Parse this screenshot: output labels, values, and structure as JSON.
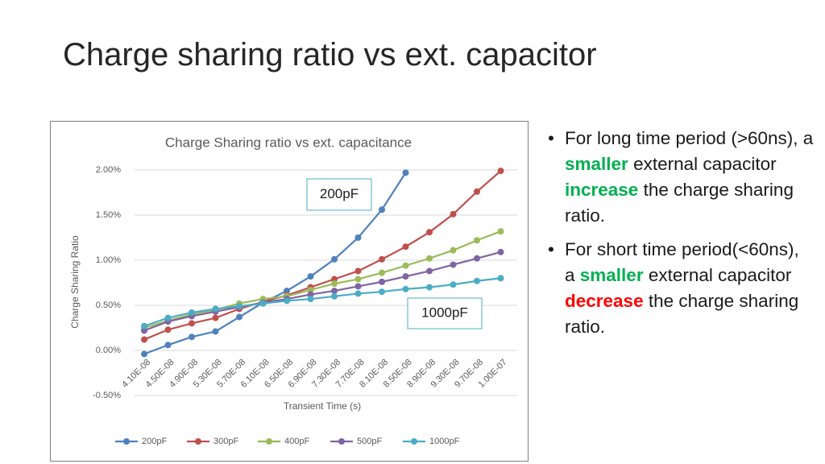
{
  "slide_title": "Charge sharing ratio vs ext. capacitor",
  "bullets": [
    [
      {
        "text": "For long time period (>60ns), a "
      },
      {
        "text": "smaller",
        "color": "#00b050"
      },
      {
        "text": " external capacitor "
      },
      {
        "text": "increase",
        "color": "#00b050"
      },
      {
        "text": " the charge sharing ratio."
      }
    ],
    [
      {
        "text": "For short time period(<60ns), a "
      },
      {
        "text": "smaller",
        "color": "#00b050"
      },
      {
        "text": " external capacitor "
      },
      {
        "text": "decrease",
        "color": "#ff0000"
      },
      {
        "text": " the charge sharing ratio."
      }
    ]
  ],
  "chart_data": {
    "type": "line",
    "title": "Charge Sharing ratio vs ext. capacitance",
    "x_label": "Transient Time (s)",
    "y_label": "Charge Sharing Ratio",
    "annotations": [
      "200pF",
      "1000pF"
    ],
    "categories": [
      "4.10E-08",
      "4.50E-08",
      "4.90E-08",
      "5.30E-08",
      "5.70E-08",
      "6.10E-08",
      "6.50E-08",
      "6.90E-08",
      "7.30E-08",
      "7.70E-08",
      "8.10E-08",
      "8.50E-08",
      "8.90E-08",
      "9.30E-08",
      "9.70E-08",
      "1.00E-07"
    ],
    "ylim": [
      -0.5,
      2.0
    ],
    "yticks": [
      {
        "value": -0.5,
        "label": "-0.50%"
      },
      {
        "value": 0,
        "label": "0.00%"
      },
      {
        "value": 0.5,
        "label": "0.50%"
      },
      {
        "value": 1.0,
        "label": "1.00%"
      },
      {
        "value": 1.5,
        "label": "1.50%"
      },
      {
        "value": 2.0,
        "label": "2.00%"
      }
    ],
    "grid": true,
    "legend": "bottom",
    "series": [
      {
        "name": "200pF",
        "color": "#4f81bd",
        "values": [
          -0.04,
          0.06,
          0.15,
          0.21,
          0.37,
          0.53,
          0.66,
          0.82,
          1.01,
          1.25,
          1.56,
          1.97,
          null,
          null,
          null,
          null
        ]
      },
      {
        "name": "300pF",
        "color": "#c0504d",
        "values": [
          0.12,
          0.23,
          0.3,
          0.36,
          0.46,
          0.54,
          0.61,
          0.7,
          0.79,
          0.88,
          1.01,
          1.15,
          1.31,
          1.51,
          1.76,
          1.99
        ]
      },
      {
        "name": "400pF",
        "color": "#9bbb59",
        "values": [
          0.25,
          0.33,
          0.4,
          0.45,
          0.52,
          0.57,
          0.6,
          0.67,
          0.74,
          0.79,
          0.86,
          0.94,
          1.02,
          1.11,
          1.22,
          1.32
        ]
      },
      {
        "name": "500pF",
        "color": "#8064a2",
        "values": [
          0.22,
          0.32,
          0.38,
          0.43,
          0.48,
          0.53,
          0.57,
          0.62,
          0.66,
          0.71,
          0.76,
          0.82,
          0.88,
          0.95,
          1.02,
          1.09
        ]
      },
      {
        "name": "1000pF",
        "color": "#4bacc6",
        "values": [
          0.27,
          0.36,
          0.42,
          0.46,
          0.49,
          0.52,
          0.55,
          0.57,
          0.6,
          0.63,
          0.65,
          0.68,
          0.7,
          0.73,
          0.77,
          0.8
        ]
      }
    ]
  }
}
